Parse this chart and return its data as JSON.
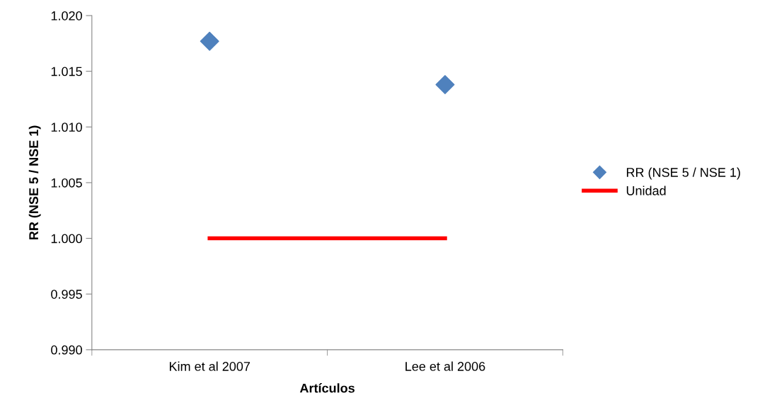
{
  "chart_data": {
    "type": "scatter",
    "xlabel": "Artículos",
    "ylabel": "RR (NSE 5 / NSE 1)",
    "categories": [
      "Kim et al 2007",
      "Lee et al 2006"
    ],
    "series": [
      {
        "name": "RR (NSE 5 / NSE 1)",
        "color": "#4f81bd",
        "marker": "diamond",
        "values": [
          1.0177,
          1.0138
        ]
      },
      {
        "name": "Unidad",
        "type": "line",
        "color": "#ff0000",
        "marker": "none",
        "values": [
          1.0,
          1.0
        ]
      }
    ],
    "ylim": [
      0.99,
      1.02
    ],
    "yticks": [
      {
        "value": 0.99,
        "label": "0.990"
      },
      {
        "value": 0.995,
        "label": "0.995"
      },
      {
        "value": 1.0,
        "label": "1.000"
      },
      {
        "value": 1.005,
        "label": "1.005"
      },
      {
        "value": 1.01,
        "label": "1.010"
      },
      {
        "value": 1.015,
        "label": "1.015"
      },
      {
        "value": 1.02,
        "label": "1.020"
      }
    ],
    "grid": false,
    "legend": "right"
  }
}
